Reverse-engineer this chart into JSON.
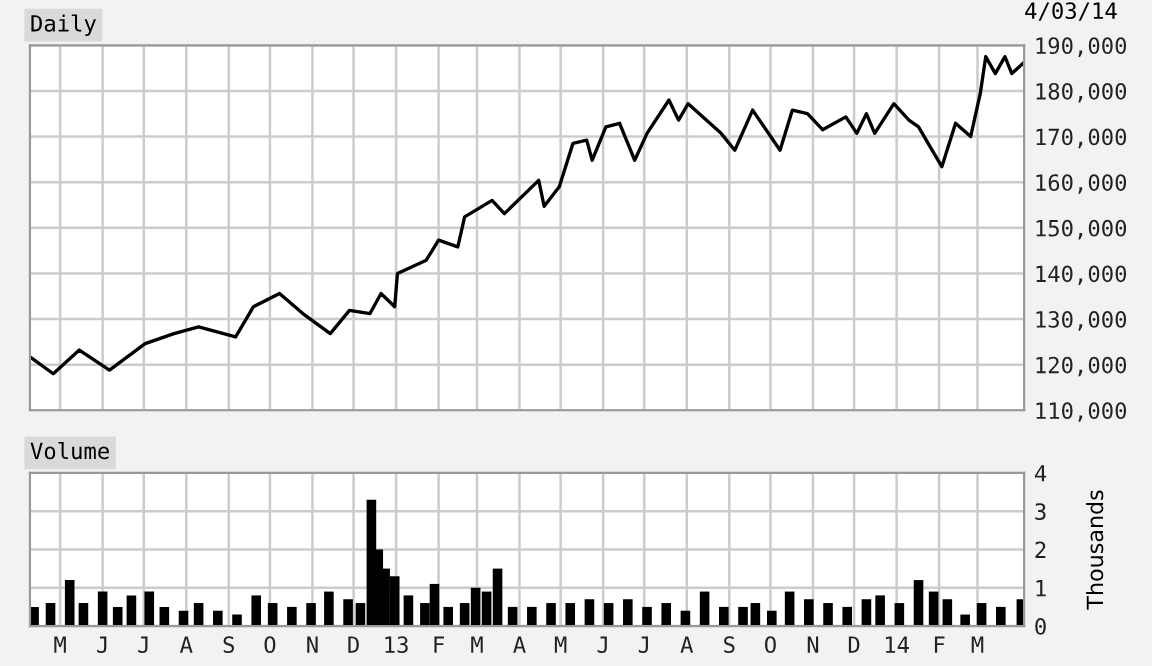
{
  "chart_data": [
    {
      "type": "line",
      "title": "Daily",
      "annotations": [
        "4/03/14"
      ],
      "x": [
        "2012-04-09",
        "2012-04-26",
        "2012-05-15",
        "2012-06-06",
        "2012-07-02",
        "2012-07-23",
        "2012-08-10",
        "2012-09-06",
        "2012-09-19",
        "2012-10-08",
        "2012-10-25",
        "2012-11-14",
        "2012-11-28",
        "2012-12-13",
        "2012-12-21",
        "2012-12-31",
        "2013-01-02",
        "2013-01-23",
        "2013-02-01",
        "2013-02-15",
        "2013-02-20",
        "2013-03-12",
        "2013-03-21",
        "2013-04-15",
        "2013-04-19",
        "2013-04-30",
        "2013-05-10",
        "2013-05-20",
        "2013-05-24",
        "2013-06-03",
        "2013-06-13",
        "2013-06-24",
        "2013-07-03",
        "2013-07-19",
        "2013-07-26",
        "2013-08-02",
        "2013-08-26",
        "2013-09-05",
        "2013-09-18",
        "2013-10-08",
        "2013-10-17",
        "2013-10-28",
        "2013-11-08",
        "2013-11-25",
        "2013-12-03",
        "2013-12-10",
        "2013-12-16",
        "2013-12-30",
        "2014-01-10",
        "2014-01-17",
        "2014-01-24",
        "2014-02-03",
        "2014-02-13",
        "2014-02-24",
        "2014-03-03",
        "2014-03-07",
        "2014-03-14",
        "2014-03-21",
        "2014-03-26",
        "2014-04-03"
      ],
      "series": [
        {
          "color": "#000000",
          "values": [
            121700,
            118000,
            123200,
            118800,
            124600,
            126800,
            128300,
            126100,
            132700,
            135600,
            131200,
            126800,
            131900,
            131200,
            135600,
            132700,
            140000,
            142900,
            147300,
            145800,
            152400,
            156000,
            153100,
            160400,
            154700,
            159000,
            168500,
            169200,
            164800,
            172100,
            172900,
            164800,
            170700,
            178000,
            173600,
            177200,
            170700,
            167000,
            175800,
            167000,
            175800,
            175000,
            171500,
            174300,
            170700,
            175000,
            170700,
            177200,
            173600,
            172100,
            168500,
            163400,
            172900,
            170000,
            179400,
            187500,
            183800,
            187500,
            183800,
            186000
          ]
        }
      ],
      "xlim": [
        "2012-04-09",
        "2014-04-04"
      ],
      "xticks": [
        {
          "value": "2012-05-01",
          "label": null
        },
        {
          "value": "2012-06-01",
          "label": null
        },
        {
          "value": "2012-07-01",
          "label": null
        },
        {
          "value": "2012-08-01",
          "label": null
        },
        {
          "value": "2012-09-01",
          "label": null
        },
        {
          "value": "2012-10-01",
          "label": null
        },
        {
          "value": "2012-11-01",
          "label": null
        },
        {
          "value": "2012-12-01",
          "label": null
        },
        {
          "value": "2013-01-01",
          "label": null
        },
        {
          "value": "2013-02-01",
          "label": null
        },
        {
          "value": "2013-03-01",
          "label": null
        },
        {
          "value": "2013-04-01",
          "label": null
        },
        {
          "value": "2013-05-01",
          "label": null
        },
        {
          "value": "2013-06-01",
          "label": null
        },
        {
          "value": "2013-07-01",
          "label": null
        },
        {
          "value": "2013-08-01",
          "label": null
        },
        {
          "value": "2013-09-01",
          "label": null
        },
        {
          "value": "2013-10-01",
          "label": null
        },
        {
          "value": "2013-11-01",
          "label": null
        },
        {
          "value": "2013-12-01",
          "label": null
        },
        {
          "value": "2014-01-01",
          "label": null
        },
        {
          "value": "2014-02-01",
          "label": null
        },
        {
          "value": "2014-03-01",
          "label": null
        }
      ],
      "ylim": [
        110000,
        190000
      ],
      "yticks": [
        {
          "value": 110000,
          "label": "110,000"
        },
        {
          "value": 120000,
          "label": "120,000"
        },
        {
          "value": 130000,
          "label": "130,000"
        },
        {
          "value": 140000,
          "label": "140,000"
        },
        {
          "value": 150000,
          "label": "150,000"
        },
        {
          "value": 160000,
          "label": "160,000"
        },
        {
          "value": 170000,
          "label": "170,000"
        },
        {
          "value": 180000,
          "label": "180,000"
        },
        {
          "value": 190000,
          "label": "190,000"
        }
      ],
      "tick_labels": "y",
      "grid": true,
      "legend": false
    },
    {
      "type": "bar",
      "title": "Volume",
      "ylabel": "Thousands",
      "x": [
        "2012-04-12",
        "2012-04-24",
        "2012-05-08",
        "2012-05-18",
        "2012-06-01",
        "2012-06-12",
        "2012-06-22",
        "2012-07-05",
        "2012-07-16",
        "2012-07-30",
        "2012-08-10",
        "2012-08-24",
        "2012-09-07",
        "2012-09-21",
        "2012-10-03",
        "2012-10-17",
        "2012-10-31",
        "2012-11-13",
        "2012-11-27",
        "2012-12-06",
        "2012-12-14",
        "2012-12-19",
        "2012-12-24",
        "2012-12-31",
        "2013-01-10",
        "2013-01-22",
        "2013-01-29",
        "2013-02-08",
        "2013-02-20",
        "2013-02-28",
        "2013-03-08",
        "2013-03-16",
        "2013-03-27",
        "2013-04-10",
        "2013-04-24",
        "2013-05-08",
        "2013-05-22",
        "2013-06-05",
        "2013-06-19",
        "2013-07-03",
        "2013-07-17",
        "2013-07-31",
        "2013-08-14",
        "2013-08-28",
        "2013-09-11",
        "2013-09-20",
        "2013-10-02",
        "2013-10-15",
        "2013-10-29",
        "2013-11-12",
        "2013-11-26",
        "2013-12-10",
        "2013-12-20",
        "2014-01-03",
        "2014-01-17",
        "2014-01-28",
        "2014-02-07",
        "2014-02-20",
        "2014-03-04",
        "2014-03-18",
        "2014-04-02"
      ],
      "series": [
        {
          "color": "#000000",
          "values": [
            0.5,
            0.6,
            1.2,
            0.6,
            0.9,
            0.5,
            0.8,
            0.9,
            0.5,
            0.4,
            0.6,
            0.4,
            0.3,
            0.8,
            0.6,
            0.5,
            0.6,
            0.9,
            0.7,
            0.6,
            3.3,
            2.0,
            1.5,
            1.3,
            0.8,
            0.6,
            1.1,
            0.5,
            0.6,
            1.0,
            0.9,
            1.5,
            0.5,
            0.5,
            0.6,
            0.6,
            0.7,
            0.6,
            0.7,
            0.5,
            0.6,
            0.4,
            0.9,
            0.5,
            0.5,
            0.6,
            0.4,
            0.9,
            0.7,
            0.6,
            0.5,
            0.7,
            0.8,
            0.6,
            1.2,
            0.9,
            0.7,
            0.3,
            0.6,
            0.5,
            0.7
          ]
        }
      ],
      "xlim": [
        "2012-04-09",
        "2014-04-04"
      ],
      "xticks": [
        {
          "value": "2012-05-01",
          "label": "M"
        },
        {
          "value": "2012-06-01",
          "label": "J"
        },
        {
          "value": "2012-07-01",
          "label": "J"
        },
        {
          "value": "2012-08-01",
          "label": "A"
        },
        {
          "value": "2012-09-01",
          "label": "S"
        },
        {
          "value": "2012-10-01",
          "label": "O"
        },
        {
          "value": "2012-11-01",
          "label": "N"
        },
        {
          "value": "2012-12-01",
          "label": "D"
        },
        {
          "value": "2013-01-01",
          "label": "13"
        },
        {
          "value": "2013-02-01",
          "label": "F"
        },
        {
          "value": "2013-03-01",
          "label": "M"
        },
        {
          "value": "2013-04-01",
          "label": "A"
        },
        {
          "value": "2013-05-01",
          "label": "M"
        },
        {
          "value": "2013-06-01",
          "label": "J"
        },
        {
          "value": "2013-07-01",
          "label": "J"
        },
        {
          "value": "2013-08-01",
          "label": "A"
        },
        {
          "value": "2013-09-01",
          "label": "S"
        },
        {
          "value": "2013-10-01",
          "label": "O"
        },
        {
          "value": "2013-11-01",
          "label": "N"
        },
        {
          "value": "2013-12-01",
          "label": "D"
        },
        {
          "value": "2014-01-01",
          "label": "14"
        },
        {
          "value": "2014-02-01",
          "label": "F"
        },
        {
          "value": "2014-03-01",
          "label": "M"
        }
      ],
      "ylim": [
        0,
        4
      ],
      "yticks": [
        0,
        1,
        2,
        3,
        4
      ],
      "grid": true,
      "legend": false
    }
  ]
}
